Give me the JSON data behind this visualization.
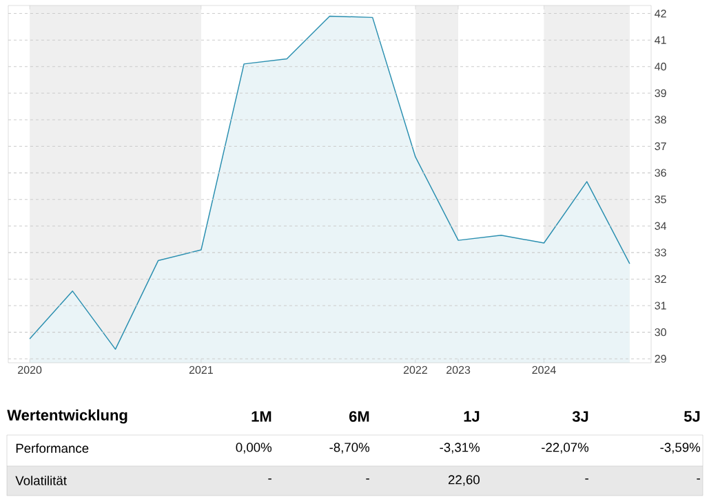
{
  "chart_data": {
    "type": "area",
    "categories": [
      "2020",
      null,
      null,
      null,
      "2021",
      null,
      null,
      null,
      null,
      "2022",
      "2023",
      null,
      "2024",
      null,
      null
    ],
    "values": [
      29.75,
      31.55,
      29.36,
      32.7,
      33.1,
      40.1,
      40.29,
      41.9,
      41.85,
      36.6,
      33.46,
      33.65,
      33.36,
      35.67,
      32.58
    ],
    "color": "#2a8fb0",
    "ylim": [
      28.85,
      42.3
    ],
    "yticks": [
      29,
      30,
      31,
      32,
      33,
      34,
      35,
      36,
      37,
      38,
      39,
      40,
      41,
      42
    ],
    "grid": "y",
    "bands": [
      {
        "axis": "x",
        "from": "2020",
        "to": "2021",
        "color": "#efefef"
      },
      {
        "axis": "x",
        "from": "2022",
        "to": "2023",
        "color": "#efefef"
      }
    ],
    "annotations": [
      "Wertentwicklung",
      "1M",
      "6M",
      "1J",
      "3J",
      "5J",
      "Performance",
      "0,00%",
      "-8,70%",
      "-3,31%",
      "-22,07%",
      "-3,59%",
      "Volatilität",
      "-",
      "-",
      "22,60",
      "-",
      "-"
    ]
  }
}
